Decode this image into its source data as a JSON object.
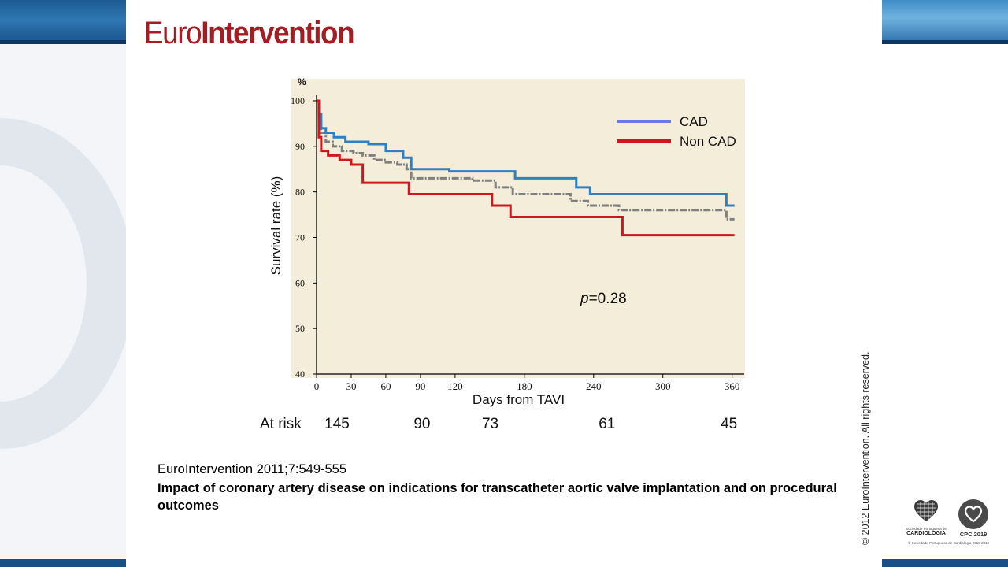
{
  "header": {
    "logo_part1": "Euro",
    "logo_part2": "Intervention"
  },
  "chart_data": {
    "type": "line",
    "step": true,
    "ylabel": "Survival rate (%)",
    "yunit": "%",
    "xlabel": "Days from TAVI",
    "xlim": [
      0,
      365
    ],
    "ylim": [
      40,
      100
    ],
    "yticks": [
      40,
      50,
      60,
      70,
      80,
      90,
      100
    ],
    "xticks": [
      0,
      30,
      60,
      90,
      120,
      180,
      240,
      300,
      360
    ],
    "legend_position": "top-right",
    "annotation": {
      "prefix": "p",
      "text": "=0.28"
    },
    "at_risk": {
      "label": "At risk",
      "entries": [
        {
          "day": 0,
          "value": "145"
        },
        {
          "day": 90,
          "value": "90"
        },
        {
          "day": 160,
          "value": "73"
        },
        {
          "day": 255,
          "value": "61"
        },
        {
          "day": 360,
          "value": "45"
        }
      ]
    },
    "series": [
      {
        "name": "CAD",
        "color": "#2e7fc4",
        "legend_color": "#6a78e8",
        "in_legend": true,
        "x": [
          0,
          2,
          4,
          8,
          15,
          25,
          45,
          60,
          75,
          82,
          115,
          172,
          225,
          237,
          355,
          362
        ],
        "y": [
          100,
          97,
          94,
          93,
          92,
          91,
          90.5,
          89,
          87.5,
          85,
          84.5,
          83,
          81,
          79.5,
          77,
          77
        ]
      },
      {
        "name": "Non CAD",
        "color": "#d0171f",
        "legend_color": "#d0171f",
        "in_legend": true,
        "x": [
          0,
          2,
          4,
          10,
          20,
          30,
          40,
          80,
          152,
          168,
          265,
          362
        ],
        "y": [
          100,
          92,
          89,
          88,
          87,
          86,
          82,
          79.5,
          77,
          74.5,
          70.5,
          70.5
        ]
      },
      {
        "name": "",
        "color": "#7f7f7f",
        "dashed": true,
        "in_legend": false,
        "x": [
          0,
          2,
          4,
          8,
          14,
          22,
          32,
          40,
          50,
          60,
          70,
          78,
          82,
          135,
          155,
          170,
          220,
          235,
          262,
          300,
          355,
          362
        ],
        "y": [
          100,
          96,
          93,
          91,
          90,
          89,
          88.5,
          88,
          87,
          86.5,
          86,
          85,
          83,
          82.5,
          81,
          79.5,
          78,
          77,
          76,
          76,
          74,
          74
        ]
      }
    ]
  },
  "citation": {
    "source": "EuroIntervention 2011;7:549-555",
    "title": "Impact of coronary artery disease on indications for transcatheter aortic valve implantation and on procedural outcomes"
  },
  "copyright": "© 2012 EuroIntervention. All rights reserved.",
  "footer": {
    "spc_small": "Sociedade Portuguesa de",
    "spc_name": "CARDIOLOGIA",
    "spc_note": "© Sociedade Portuguesa de Cardiologia 2018-2019",
    "cpc_label": "CPC 2019"
  },
  "colors": {
    "brand": "#a51d24",
    "plot_background": "#f4edd9",
    "frame": "#1a4f86"
  }
}
